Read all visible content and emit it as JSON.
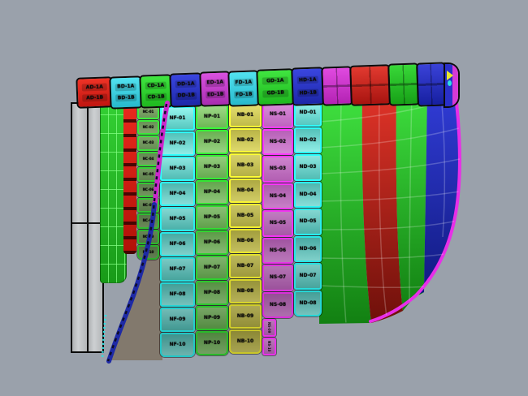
{
  "app": {
    "name": "3D CAD viewport - hull plate model"
  },
  "colors": {
    "bg": "#9aa1ab",
    "tan_surface": "#82796d",
    "bars_fill": "#c3c6c8",
    "bars_border": "#0a0a0a",
    "stem_magenta": "#cc26cc",
    "stem_blue": "#1e2aa6",
    "stem_dash": "#0d0d28",
    "stem_cyan": "#2ce2e2"
  },
  "left": {
    "green_strake": {
      "color_light": "#33cf33",
      "color_dark": "#189a18",
      "wire": "rgba(130,255,130,0.75)"
    },
    "red_strake": {
      "color_light": "#ea2a1e",
      "color_dark": "#b01208",
      "mark": "rgba(40,0,0,0.8)"
    }
  },
  "top_row": {
    "panels": [
      {
        "id": "deck-plate-1",
        "light": "#ef3326",
        "dark": "#c01510",
        "labels": [
          "AD-1A",
          "AD-1B"
        ]
      },
      {
        "id": "deck-plate-2",
        "light": "#52e2ef",
        "dark": "#27b9cc",
        "labels": [
          "BD-1A",
          "BD-1B"
        ]
      },
      {
        "id": "deck-plate-3",
        "light": "#40e540",
        "dark": "#1fb81f",
        "labels": [
          "CD-1A",
          "CD-1B"
        ]
      },
      {
        "id": "deck-plate-4",
        "light": "#3a46e0",
        "dark": "#1d27a8",
        "labels": [
          "DD-1A",
          "DD-1B"
        ]
      },
      {
        "id": "deck-plate-5",
        "light": "#da52e0",
        "dark": "#a82cb0",
        "labels": [
          "ED-1A",
          "ED-1B"
        ]
      },
      {
        "id": "deck-plate-6",
        "light": "#52e2ef",
        "dark": "#27b9cc",
        "labels": [
          "FD-1A",
          "FD-1B"
        ]
      },
      {
        "id": "deck-plate-7",
        "light": "#40e540",
        "dark": "#1fb81f",
        "labels": [
          "GD-1A",
          "GD-1B"
        ]
      },
      {
        "id": "deck-plate-8",
        "light": "#3a46e0",
        "dark": "#1d27a8",
        "labels": [
          "HD-1A",
          "HD-1B"
        ]
      },
      {
        "id": "deck-plate-9",
        "light": "#e04ae0",
        "dark": "#b322b3",
        "labels": []
      },
      {
        "id": "deck-plate-10",
        "light": "#e23a30",
        "dark": "#a81410",
        "labels": []
      },
      {
        "id": "deck-plate-11",
        "light": "#38d838",
        "dark": "#17a017",
        "labels": []
      },
      {
        "id": "deck-plate-12",
        "light": "#3a42d8",
        "dark": "#161fa0",
        "labels": []
      }
    ]
  },
  "columns": {
    "darkgreen": {
      "border": "#32cc32",
      "fill_a": "#72925f",
      "fill_b": "#5c7f4c",
      "labels": [
        "NC-01",
        "NC-02",
        "NC-03",
        "NC-04",
        "NC-05",
        "NC-06",
        "NC-07",
        "NC-08",
        "NC-09",
        "NC-10"
      ]
    },
    "teal": {
      "border": "#28e5e5",
      "fill_a": "#7ecfc9",
      "fill_b": "#49a9a2",
      "labels": [
        "NF-01",
        "NF-02",
        "NF-03",
        "NF-04",
        "NF-05",
        "NF-06",
        "NF-07",
        "NF-08",
        "NF-09",
        "NF-10"
      ]
    },
    "green": {
      "border": "#2fd62f",
      "fill_a": "#85b871",
      "fill_b": "#5d9a49",
      "labels": [
        "NP-01",
        "NP-02",
        "NP-03",
        "NP-04",
        "NP-05",
        "NP-06",
        "NP-07",
        "NP-08",
        "NP-09",
        "NP-10"
      ]
    },
    "yellow": {
      "border": "#e8e52f",
      "fill_a": "#c2bd5e",
      "fill_b": "#a29e3e",
      "labels": [
        "NB-01",
        "NB-02",
        "NB-03",
        "NB-04",
        "NB-05",
        "NB-06",
        "NB-07",
        "NB-08",
        "NB-09",
        "NB-10"
      ]
    },
    "magenta": {
      "border": "#e832e8",
      "fill_a": "#b977b9",
      "fill_b": "#a055a0",
      "labels": [
        "NS-01",
        "NS-02",
        "NS-03",
        "NS-04",
        "NS-05",
        "NS-06",
        "NS-07",
        "NS-08"
      ],
      "vertical_labels": [
        "NS-09",
        "NS-10"
      ]
    },
    "teal2": {
      "border": "#28e5e5",
      "fill_a": "#7ecfc9",
      "fill_b": "#49a9a2",
      "labels": [
        "ND-01",
        "ND-02",
        "ND-03",
        "ND-04",
        "ND-05",
        "ND-06",
        "ND-07",
        "ND-08"
      ]
    }
  },
  "right_strakes": {
    "green": {
      "light": "#3fe03f",
      "dark": "#128012"
    },
    "red": {
      "light": "#e03328",
      "dark": "#6e100a"
    },
    "blue": {
      "light": "#3440e0",
      "dark": "#111a80"
    },
    "edge_magenta": "#e82ee8",
    "grid_line": "rgba(255,255,255,0.22)"
  }
}
